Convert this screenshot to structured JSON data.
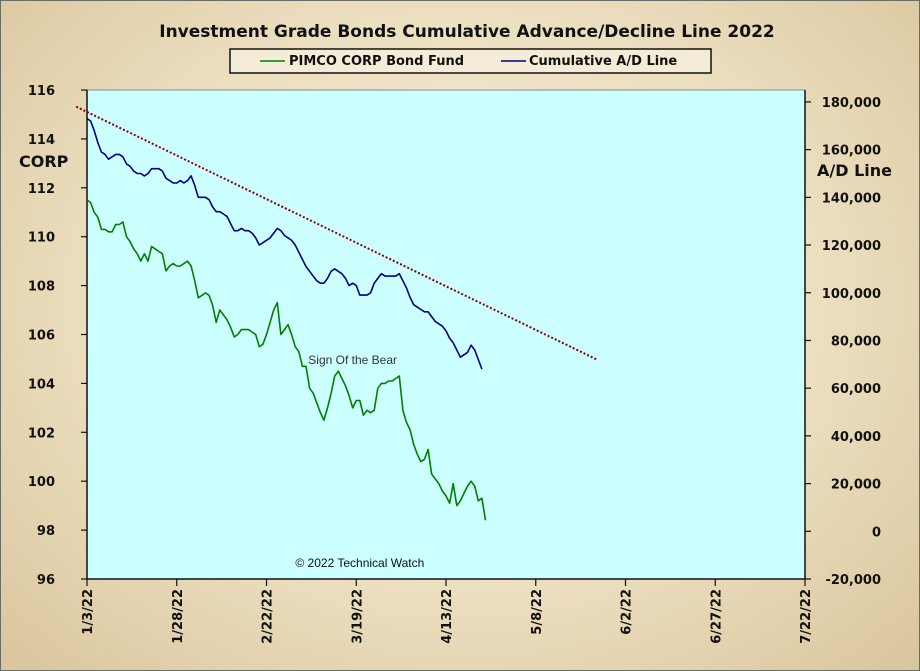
{
  "chart_data": {
    "type": "line",
    "title": "Investment  Grade Bonds Cumulative  Advance/Decline  Line 2022",
    "legend": {
      "placement": "top",
      "entries": [
        {
          "label": "PIMCO CORP Bond Fund",
          "color": "#008000"
        },
        {
          "label": "Cumulative A/D Line",
          "color": "#000080"
        }
      ]
    },
    "left_axis": {
      "label": "CORP",
      "range": [
        96,
        116
      ],
      "ticks": [
        116,
        114,
        112,
        110,
        108,
        106,
        104,
        102,
        100,
        98,
        96
      ],
      "tick_labels": [
        "116",
        "114",
        "112",
        "110",
        "108",
        "106",
        "104",
        "102",
        "100",
        "98",
        "96"
      ]
    },
    "right_axis": {
      "label": "A/D Line",
      "range": [
        -20000,
        185000
      ],
      "ticks": [
        180000,
        160000,
        140000,
        120000,
        100000,
        80000,
        60000,
        40000,
        20000,
        0,
        -20000
      ],
      "tick_labels": [
        "180,000",
        "160,000",
        "140,000",
        "120,000",
        "100,000",
        "80,000",
        "60,000",
        "40,000",
        "20,000",
        "0",
        "-20,000"
      ]
    },
    "x_axis": {
      "range_days": [
        0,
        200
      ],
      "ticks": [
        0,
        25,
        50,
        75,
        100,
        125,
        150,
        175,
        200
      ],
      "tick_labels": [
        "1/3/22",
        "1/28/22",
        "2/22/22",
        "3/19/22",
        "4/13/22",
        "5/8/22",
        "6/2/22",
        "6/27/22",
        "7/22/22"
      ]
    },
    "grid": false,
    "background_color": "#ccffff",
    "series": [
      {
        "name": "PIMCO CORP Bond Fund",
        "axis": "left",
        "color": "#008000",
        "points": [
          [
            0,
            111.5
          ],
          [
            1,
            111.4
          ],
          [
            2,
            111
          ],
          [
            3,
            110.8
          ],
          [
            4,
            110.3
          ],
          [
            5,
            110.3
          ],
          [
            6,
            110.2
          ],
          [
            7,
            110.2
          ],
          [
            8,
            110.5
          ],
          [
            9,
            110.5
          ],
          [
            10,
            110.6
          ],
          [
            11,
            110
          ],
          [
            12,
            109.8
          ],
          [
            13,
            109.5
          ],
          [
            14,
            109.3
          ],
          [
            15,
            109
          ],
          [
            16,
            109.3
          ],
          [
            17,
            109
          ],
          [
            18,
            109.6
          ],
          [
            19,
            109.5
          ],
          [
            20,
            109.4
          ],
          [
            21,
            109.3
          ],
          [
            22,
            108.6
          ],
          [
            23,
            108.8
          ],
          [
            24,
            108.9
          ],
          [
            25,
            108.8
          ],
          [
            26,
            108.8
          ],
          [
            27,
            108.9
          ],
          [
            28,
            109
          ],
          [
            29,
            108.8
          ],
          [
            30,
            108.2
          ],
          [
            31,
            107.5
          ],
          [
            32,
            107.6
          ],
          [
            33,
            107.7
          ],
          [
            34,
            107.6
          ],
          [
            35,
            107.2
          ],
          [
            36,
            106.5
          ],
          [
            37,
            107
          ],
          [
            38,
            106.8
          ],
          [
            39,
            106.6
          ],
          [
            40,
            106.3
          ],
          [
            41,
            105.9
          ],
          [
            42,
            106
          ],
          [
            43,
            106.2
          ],
          [
            44,
            106.2
          ],
          [
            45,
            106.2
          ],
          [
            46,
            106.1
          ],
          [
            47,
            106
          ],
          [
            48,
            105.5
          ],
          [
            49,
            105.6
          ],
          [
            50,
            106
          ],
          [
            51,
            106.5
          ],
          [
            52,
            107
          ],
          [
            53,
            107.3
          ],
          [
            54,
            106
          ],
          [
            55,
            106.2
          ],
          [
            56,
            106.4
          ],
          [
            57,
            106
          ],
          [
            58,
            105.5
          ],
          [
            59,
            105.3
          ],
          [
            60,
            104.7
          ],
          [
            61,
            104.7
          ],
          [
            62,
            103.8
          ],
          [
            63,
            103.6
          ],
          [
            64,
            103.2
          ],
          [
            65,
            102.8
          ],
          [
            66,
            102.5
          ],
          [
            67,
            103
          ],
          [
            68,
            103.6
          ],
          [
            69,
            104.3
          ],
          [
            70,
            104.5
          ],
          [
            71,
            104.2
          ],
          [
            72,
            103.9
          ],
          [
            73,
            103.5
          ],
          [
            74,
            103
          ],
          [
            75,
            103.3
          ],
          [
            76,
            103.3
          ],
          [
            77,
            102.7
          ],
          [
            78,
            102.9
          ],
          [
            79,
            102.8
          ],
          [
            80,
            102.9
          ],
          [
            81,
            103.8
          ],
          [
            82,
            104
          ],
          [
            83,
            104
          ],
          [
            84,
            104.1
          ],
          [
            85,
            104.1
          ],
          [
            86,
            104.2
          ],
          [
            87,
            104.3
          ],
          [
            88,
            102.9
          ],
          [
            89,
            102.4
          ],
          [
            90,
            102.1
          ],
          [
            91,
            101.5
          ],
          [
            92,
            101.1
          ],
          [
            93,
            100.8
          ],
          [
            94,
            100.9
          ],
          [
            95,
            101.3
          ],
          [
            96,
            100.3
          ],
          [
            97,
            100.1
          ],
          [
            98,
            99.9
          ],
          [
            99,
            99.6
          ],
          [
            100,
            99.4
          ],
          [
            101,
            99.1
          ],
          [
            102,
            99.9
          ],
          [
            103,
            99
          ],
          [
            104,
            99.2
          ],
          [
            105,
            99.5
          ],
          [
            106,
            99.8
          ],
          [
            107,
            100
          ],
          [
            108,
            99.8
          ],
          [
            109,
            99.2
          ],
          [
            110,
            99.3
          ],
          [
            111,
            98.4
          ]
        ]
      },
      {
        "name": "Cumulative A/D Line",
        "axis": "right",
        "color": "#000080",
        "points": [
          [
            0,
            173000
          ],
          [
            1,
            172000
          ],
          [
            2,
            168000
          ],
          [
            3,
            163000
          ],
          [
            4,
            159000
          ],
          [
            5,
            158000
          ],
          [
            6,
            156000
          ],
          [
            7,
            157000
          ],
          [
            8,
            158000
          ],
          [
            9,
            158000
          ],
          [
            10,
            157000
          ],
          [
            11,
            154000
          ],
          [
            12,
            153000
          ],
          [
            13,
            151000
          ],
          [
            14,
            150000
          ],
          [
            15,
            150000
          ],
          [
            16,
            149000
          ],
          [
            17,
            150000
          ],
          [
            18,
            152000
          ],
          [
            19,
            152000
          ],
          [
            20,
            152000
          ],
          [
            21,
            151000
          ],
          [
            22,
            148000
          ],
          [
            23,
            147000
          ],
          [
            24,
            146000
          ],
          [
            25,
            146000
          ],
          [
            26,
            147000
          ],
          [
            27,
            146000
          ],
          [
            28,
            147000
          ],
          [
            29,
            149000
          ],
          [
            30,
            145000
          ],
          [
            31,
            140000
          ],
          [
            32,
            140000
          ],
          [
            33,
            140000
          ],
          [
            34,
            139000
          ],
          [
            35,
            136000
          ],
          [
            36,
            134000
          ],
          [
            37,
            134000
          ],
          [
            38,
            133000
          ],
          [
            39,
            132000
          ],
          [
            40,
            129000
          ],
          [
            41,
            126000
          ],
          [
            42,
            126000
          ],
          [
            43,
            127000
          ],
          [
            44,
            126000
          ],
          [
            45,
            126000
          ],
          [
            46,
            125000
          ],
          [
            47,
            123000
          ],
          [
            48,
            120000
          ],
          [
            49,
            121000
          ],
          [
            50,
            122000
          ],
          [
            51,
            123000
          ],
          [
            52,
            125000
          ],
          [
            53,
            127000
          ],
          [
            54,
            126000
          ],
          [
            55,
            124000
          ],
          [
            56,
            123000
          ],
          [
            57,
            122000
          ],
          [
            58,
            120000
          ],
          [
            59,
            117000
          ],
          [
            60,
            114000
          ],
          [
            61,
            111000
          ],
          [
            62,
            109000
          ],
          [
            63,
            107000
          ],
          [
            64,
            105000
          ],
          [
            65,
            104000
          ],
          [
            66,
            104000
          ],
          [
            67,
            106000
          ],
          [
            68,
            109000
          ],
          [
            69,
            110000
          ],
          [
            70,
            109000
          ],
          [
            71,
            108000
          ],
          [
            72,
            106000
          ],
          [
            73,
            103000
          ],
          [
            74,
            104000
          ],
          [
            75,
            103000
          ],
          [
            76,
            99000
          ],
          [
            77,
            99000
          ],
          [
            78,
            99000
          ],
          [
            79,
            100000
          ],
          [
            80,
            104000
          ],
          [
            81,
            106000
          ],
          [
            82,
            108000
          ],
          [
            83,
            107000
          ],
          [
            84,
            107000
          ],
          [
            85,
            107000
          ],
          [
            86,
            107000
          ],
          [
            87,
            108000
          ],
          [
            88,
            105000
          ],
          [
            89,
            102000
          ],
          [
            90,
            98000
          ],
          [
            91,
            95000
          ],
          [
            92,
            94000
          ],
          [
            93,
            93000
          ],
          [
            94,
            92000
          ],
          [
            95,
            92000
          ],
          [
            96,
            90000
          ],
          [
            97,
            88000
          ],
          [
            98,
            87000
          ],
          [
            99,
            86000
          ],
          [
            100,
            84000
          ],
          [
            101,
            81000
          ],
          [
            102,
            79000
          ],
          [
            103,
            76000
          ],
          [
            104,
            73000
          ],
          [
            105,
            74000
          ],
          [
            106,
            75000
          ],
          [
            107,
            78000
          ],
          [
            108,
            76000
          ],
          [
            109,
            72000
          ],
          [
            110,
            68000
          ]
        ]
      },
      {
        "name": "",
        "axis": "right",
        "color": "#8b0000",
        "style": "dotted-trendline",
        "points": [
          [
            -3,
            178000
          ],
          [
            142,
            72000
          ]
        ]
      }
    ],
    "annotations": [
      {
        "text": "Sign Of the Bear",
        "x": 74,
        "y_left": 104.8
      },
      {
        "text": "© 2022 Technical Watch",
        "x": 76,
        "y_left": 96.5
      }
    ]
  }
}
